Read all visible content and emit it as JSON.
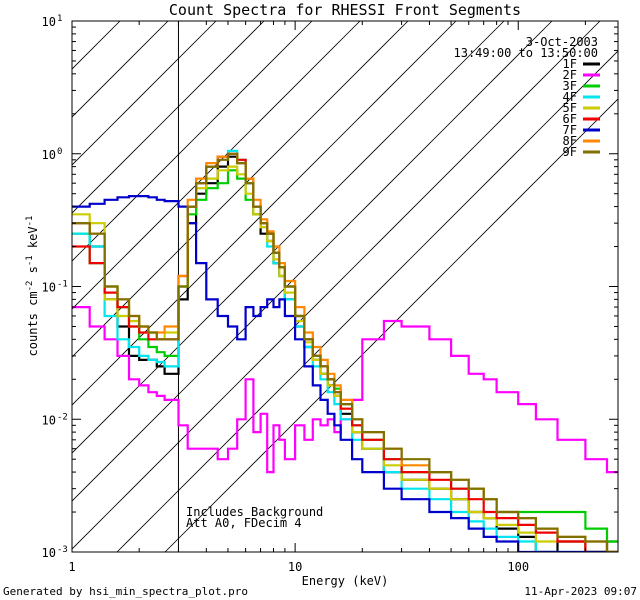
{
  "chart_data": {
    "type": "line",
    "step": true,
    "title": "Count Spectra for RHESSI Front Segments",
    "xlabel": "Energy (keV)",
    "ylabel": {
      "base": "counts cm",
      "exp1": "-2",
      "mid": " s",
      "exp2": "-1",
      "end": " keV",
      "exp3": "-1"
    },
    "xscale": "log",
    "yscale": "log",
    "xlim": [
      1,
      280
    ],
    "ylim": [
      0.001,
      10
    ],
    "x_ticks": [
      {
        "value": 1,
        "label": "1"
      },
      {
        "value": 10,
        "label": "10"
      },
      {
        "value": 100,
        "label": "100"
      }
    ],
    "y_ticks": [
      {
        "value": 0.001,
        "base": "10",
        "exp": "-3"
      },
      {
        "value": 0.01,
        "base": "10",
        "exp": "-2"
      },
      {
        "value": 0.1,
        "base": "10",
        "exp": "-1"
      },
      {
        "value": 1,
        "base": "10",
        "exp": "0"
      },
      {
        "value": 10,
        "base": "10",
        "exp": "1"
      }
    ],
    "hatched_region": {
      "x": [
        1,
        3
      ]
    },
    "info_date": "3-Oct-2003",
    "info_time": "13:49:00 to 13:50:00",
    "annotations": [
      "Includes Background",
      "Att A0, FDecim 4"
    ],
    "legend_position": "top-right",
    "x_common": [
      1.0,
      1.2,
      1.4,
      1.6,
      1.8,
      2.0,
      2.2,
      2.4,
      2.6,
      3.0,
      3.3,
      3.6,
      4.0,
      4.5,
      5.0,
      5.5,
      6.0,
      6.5,
      7.0,
      7.5,
      8.0,
      8.5,
      9.0,
      10.0,
      11.0,
      12.0,
      13.0,
      14.0,
      15.0,
      16.0,
      18.0,
      20.0,
      25.0,
      30.0,
      40.0,
      50.0,
      60.0,
      70.0,
      80.0,
      100.0,
      120.0,
      150.0,
      200.0,
      250.0,
      280.0
    ],
    "series": [
      {
        "name": "1F",
        "color": "#000000",
        "values": [
          0.3,
          0.2,
          0.08,
          0.05,
          0.03,
          0.028,
          0.028,
          0.025,
          0.022,
          0.08,
          0.3,
          0.5,
          0.6,
          0.8,
          0.95,
          0.85,
          0.6,
          0.35,
          0.25,
          0.22,
          0.15,
          0.12,
          0.08,
          0.05,
          0.035,
          0.028,
          0.022,
          0.018,
          0.015,
          0.011,
          0.008,
          0.006,
          0.004,
          0.0035,
          0.003,
          0.0025,
          0.002,
          0.0018,
          0.0015,
          0.0013,
          0.001,
          0.0012,
          0.001,
          0.0012,
          0.001
        ]
      },
      {
        "name": "2F",
        "color": "#ff00ff",
        "values": [
          0.07,
          0.05,
          0.04,
          0.03,
          0.02,
          0.018,
          0.016,
          0.015,
          0.014,
          0.009,
          0.006,
          0.006,
          0.006,
          0.005,
          0.006,
          0.01,
          0.02,
          0.008,
          0.011,
          0.004,
          0.009,
          0.007,
          0.005,
          0.009,
          0.007,
          0.01,
          0.009,
          0.01,
          0.008,
          0.01,
          0.014,
          0.04,
          0.055,
          0.05,
          0.04,
          0.03,
          0.022,
          0.02,
          0.016,
          0.013,
          0.01,
          0.007,
          0.005,
          0.004,
          0.003
        ]
      },
      {
        "name": "3F",
        "color": "#00cc00",
        "values": [
          0.25,
          0.15,
          0.1,
          0.07,
          0.05,
          0.04,
          0.035,
          0.032,
          0.03,
          0.1,
          0.35,
          0.45,
          0.55,
          0.6,
          0.75,
          0.65,
          0.45,
          0.35,
          0.3,
          0.25,
          0.18,
          0.14,
          0.1,
          0.06,
          0.04,
          0.03,
          0.025,
          0.02,
          0.017,
          0.013,
          0.009,
          0.007,
          0.005,
          0.004,
          0.004,
          0.003,
          0.003,
          0.0025,
          0.002,
          0.002,
          0.002,
          0.002,
          0.0015,
          0.0012,
          0.001
        ]
      },
      {
        "name": "4F",
        "color": "#00e5ee",
        "values": [
          0.25,
          0.2,
          0.06,
          0.04,
          0.035,
          0.03,
          0.028,
          0.027,
          0.025,
          0.1,
          0.4,
          0.6,
          0.8,
          0.95,
          1.05,
          0.9,
          0.6,
          0.4,
          0.28,
          0.2,
          0.15,
          0.12,
          0.08,
          0.05,
          0.035,
          0.025,
          0.02,
          0.016,
          0.013,
          0.01,
          0.007,
          0.006,
          0.004,
          0.003,
          0.0025,
          0.002,
          0.0017,
          0.0015,
          0.0013,
          0.0012,
          0.001,
          0.001,
          0.001,
          0.001,
          0.001
        ]
      },
      {
        "name": "5F",
        "color": "#cccc00",
        "values": [
          0.35,
          0.3,
          0.08,
          0.06,
          0.055,
          0.05,
          0.045,
          0.04,
          0.045,
          0.1,
          0.4,
          0.55,
          0.65,
          0.75,
          0.8,
          0.7,
          0.5,
          0.35,
          0.28,
          0.22,
          0.16,
          0.12,
          0.09,
          0.055,
          0.038,
          0.028,
          0.022,
          0.018,
          0.015,
          0.012,
          0.008,
          0.006,
          0.0045,
          0.0035,
          0.003,
          0.0025,
          0.002,
          0.0018,
          0.0016,
          0.0014,
          0.0012,
          0.0012,
          0.001,
          0.001,
          0.001
        ]
      },
      {
        "name": "6F",
        "color": "#ee0000",
        "values": [
          0.2,
          0.15,
          0.09,
          0.07,
          0.05,
          0.045,
          0.04,
          0.04,
          0.04,
          0.12,
          0.4,
          0.6,
          0.8,
          0.95,
          1.0,
          0.9,
          0.65,
          0.4,
          0.3,
          0.25,
          0.18,
          0.14,
          0.1,
          0.06,
          0.04,
          0.03,
          0.025,
          0.02,
          0.016,
          0.012,
          0.009,
          0.007,
          0.005,
          0.004,
          0.0035,
          0.003,
          0.0025,
          0.002,
          0.0018,
          0.0016,
          0.0014,
          0.0012,
          0.001,
          0.001,
          0.001
        ]
      },
      {
        "name": "7F",
        "color": "#0000cc",
        "values": [
          0.4,
          0.42,
          0.45,
          0.47,
          0.48,
          0.48,
          0.47,
          0.45,
          0.44,
          0.4,
          0.3,
          0.15,
          0.08,
          0.06,
          0.05,
          0.04,
          0.07,
          0.06,
          0.07,
          0.08,
          0.07,
          0.08,
          0.06,
          0.04,
          0.025,
          0.018,
          0.014,
          0.011,
          0.009,
          0.007,
          0.005,
          0.004,
          0.003,
          0.0025,
          0.002,
          0.0018,
          0.0015,
          0.0013,
          0.0012,
          0.001,
          0.001,
          0.001,
          0.001,
          0.001,
          0.001
        ]
      },
      {
        "name": "8F",
        "color": "#ff8800",
        "values": [
          0.3,
          0.25,
          0.1,
          0.08,
          0.06,
          0.05,
          0.045,
          0.045,
          0.05,
          0.12,
          0.45,
          0.65,
          0.85,
          0.95,
          1.0,
          0.85,
          0.65,
          0.45,
          0.32,
          0.26,
          0.2,
          0.15,
          0.11,
          0.07,
          0.045,
          0.035,
          0.028,
          0.022,
          0.018,
          0.014,
          0.01,
          0.008,
          0.006,
          0.0045,
          0.004,
          0.0035,
          0.003,
          0.0025,
          0.002,
          0.0018,
          0.0015,
          0.0013,
          0.0012,
          0.001,
          0.001
        ]
      },
      {
        "name": "9F",
        "color": "#807000",
        "values": [
          0.3,
          0.25,
          0.1,
          0.08,
          0.06,
          0.05,
          0.045,
          0.04,
          0.04,
          0.1,
          0.4,
          0.6,
          0.8,
          0.9,
          1.0,
          0.85,
          0.6,
          0.4,
          0.3,
          0.25,
          0.18,
          0.14,
          0.1,
          0.06,
          0.04,
          0.03,
          0.025,
          0.02,
          0.016,
          0.013,
          0.01,
          0.008,
          0.006,
          0.005,
          0.004,
          0.0035,
          0.003,
          0.0025,
          0.002,
          0.0018,
          0.0015,
          0.0013,
          0.0012,
          0.001,
          0.001
        ]
      }
    ]
  },
  "footer": {
    "left": "Generated by hsi_min_spectra_plot.pro",
    "right": "11-Apr-2023 09:07"
  }
}
